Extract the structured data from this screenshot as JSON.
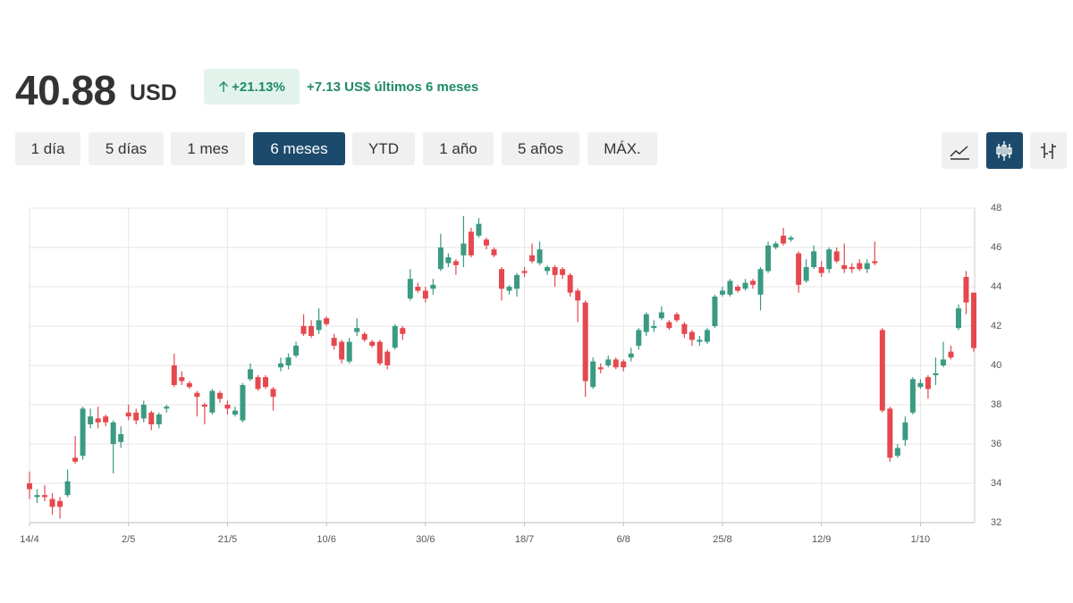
{
  "header": {
    "price": "40.88",
    "currency": "USD",
    "change_pct": "+21.13%",
    "change_text": "+7.13 US$ últimos 6 meses",
    "ranges": [
      "1 día",
      "5 días",
      "1 mes",
      "6 meses",
      "YTD",
      "1 año",
      "5 años",
      "MÁX."
    ]
  },
  "chart_data": {
    "type": "candlestick",
    "up_color": "#3a9a82",
    "down_color": "#e5484d",
    "grid": true,
    "ylim": [
      32,
      48
    ],
    "yticks": [
      32,
      34,
      36,
      38,
      40,
      42,
      44,
      46,
      48
    ],
    "categories": [
      "14/4",
      null,
      null,
      null,
      null,
      null,
      null,
      null,
      null,
      null,
      null,
      null,
      null,
      "2/5",
      null,
      null,
      null,
      null,
      null,
      null,
      null,
      null,
      null,
      null,
      null,
      null,
      "21/5",
      null,
      null,
      null,
      null,
      null,
      null,
      null,
      null,
      null,
      null,
      null,
      null,
      "10/6",
      null,
      null,
      null,
      null,
      null,
      null,
      null,
      null,
      null,
      null,
      null,
      null,
      "30/6",
      null,
      null,
      null,
      null,
      null,
      null,
      null,
      null,
      null,
      null,
      null,
      null,
      "18/7",
      null,
      null,
      null,
      null,
      null,
      null,
      null,
      null,
      null,
      null,
      null,
      null,
      "6/8",
      null,
      null,
      null,
      null,
      null,
      null,
      null,
      null,
      null,
      null,
      null,
      null,
      "25/8",
      null,
      null,
      null,
      null,
      null,
      null,
      null,
      null,
      null,
      null,
      null,
      null,
      "12/9",
      null,
      null,
      null,
      null,
      null,
      null,
      null,
      null,
      null,
      null,
      null,
      null,
      "1/10",
      null,
      null,
      null,
      null,
      null,
      null,
      null
    ],
    "open": [
      34.0,
      33.3,
      33.4,
      33.2,
      33.1,
      33.4,
      35.3,
      35.4,
      37.0,
      37.3,
      37.4,
      36.0,
      36.1,
      37.6,
      37.6,
      37.3,
      37.6,
      37.0,
      37.8,
      40.0,
      39.4,
      39.1,
      38.6,
      38.0,
      37.6,
      38.6,
      38.0,
      37.5,
      37.2,
      39.3,
      39.4,
      39.4,
      38.8,
      39.9,
      40.0,
      40.5,
      42.0,
      42.0,
      41.8,
      42.4,
      41.4,
      41.2,
      40.2,
      41.7,
      41.6,
      41.2,
      41.2,
      40.7,
      40.9,
      41.9,
      43.4,
      44.0,
      43.8,
      43.9,
      44.9,
      45.2,
      45.3,
      45.6,
      46.8,
      46.6,
      46.4,
      45.9,
      44.9,
      43.8,
      43.9,
      44.8,
      45.6,
      45.2,
      44.8,
      45.0,
      44.9,
      44.6,
      43.8,
      43.2,
      38.9,
      39.9,
      40.0,
      40.3,
      40.2,
      40.4,
      41.0,
      41.7,
      41.9,
      42.4,
      42.2,
      42.6,
      42.1,
      41.7,
      41.2,
      41.2,
      42.0,
      43.6,
      43.6,
      44.0,
      43.9,
      44.3,
      43.6,
      44.8,
      46.0,
      46.6,
      46.4,
      45.7,
      44.3,
      45.0,
      45.0,
      44.9,
      45.8,
      45.1,
      45.0,
      45.2,
      44.9,
      45.3,
      41.8,
      37.8,
      35.4,
      36.2,
      37.6,
      38.9,
      39.4,
      39.5,
      40.0,
      40.7,
      41.9,
      44.5,
      43.7
    ],
    "high": [
      34.6,
      33.7,
      33.9,
      33.5,
      33.3,
      34.7,
      36.4,
      37.9,
      37.8,
      37.9,
      37.5,
      37.2,
      36.9,
      38.0,
      37.8,
      38.2,
      37.7,
      37.6,
      38.0,
      40.6,
      39.7,
      39.2,
      38.7,
      38.1,
      38.8,
      38.7,
      38.2,
      37.9,
      39.1,
      40.1,
      39.5,
      39.5,
      38.9,
      40.4,
      40.6,
      41.2,
      42.6,
      42.3,
      42.9,
      42.5,
      41.6,
      41.3,
      41.4,
      42.4,
      41.7,
      41.3,
      41.3,
      40.8,
      42.1,
      42.0,
      44.9,
      44.2,
      44.0,
      44.4,
      46.7,
      45.7,
      45.4,
      47.6,
      47.0,
      47.5,
      46.5,
      46.0,
      45.0,
      44.1,
      44.7,
      45.0,
      46.2,
      46.3,
      45.1,
      45.1,
      45.0,
      44.7,
      43.9,
      43.3,
      40.4,
      40.1,
      40.5,
      40.4,
      40.3,
      40.9,
      41.9,
      42.7,
      42.3,
      43.0,
      42.3,
      42.7,
      42.2,
      41.8,
      41.5,
      41.9,
      43.6,
      44.0,
      44.4,
      44.1,
      44.4,
      44.4,
      45.0,
      46.3,
      46.3,
      47.0,
      46.6,
      45.8,
      45.4,
      46.1,
      45.3,
      46.0,
      46.0,
      46.2,
      45.2,
      45.4,
      45.4,
      46.3,
      41.9,
      37.9,
      36.0,
      37.4,
      39.4,
      39.3,
      39.5,
      40.4,
      41.2,
      41.0,
      43.1,
      44.8,
      43.7
    ],
    "low": [
      33.2,
      33.0,
      33.1,
      32.4,
      32.2,
      33.3,
      35.0,
      35.2,
      36.8,
      36.8,
      36.9,
      34.5,
      35.8,
      37.2,
      37.0,
      37.1,
      36.7,
      36.8,
      37.6,
      38.9,
      39.0,
      38.8,
      37.4,
      37.0,
      37.5,
      38.1,
      37.5,
      37.4,
      37.1,
      39.2,
      38.7,
      38.8,
      37.7,
      39.7,
      39.8,
      40.4,
      41.5,
      41.4,
      41.6,
      42.0,
      40.8,
      40.1,
      40.1,
      41.5,
      41.2,
      40.9,
      40.0,
      39.8,
      40.8,
      41.3,
      43.3,
      43.7,
      43.2,
      43.6,
      44.8,
      45.0,
      44.6,
      45.0,
      45.5,
      46.5,
      45.9,
      45.5,
      43.3,
      43.6,
      43.5,
      44.5,
      45.2,
      45.1,
      44.6,
      44.0,
      44.4,
      43.5,
      42.2,
      38.4,
      38.8,
      39.6,
      39.9,
      39.8,
      39.7,
      40.2,
      40.8,
      41.5,
      41.7,
      42.3,
      41.8,
      42.2,
      41.4,
      41.0,
      41.0,
      41.1,
      41.9,
      43.5,
      43.5,
      43.7,
      43.8,
      43.9,
      42.8,
      44.7,
      45.9,
      46.1,
      46.3,
      43.7,
      44.2,
      44.9,
      44.5,
      44.7,
      45.2,
      44.7,
      44.7,
      44.8,
      44.7,
      45.1,
      37.6,
      35.1,
      35.3,
      35.9,
      37.5,
      38.8,
      38.3,
      39.0,
      39.9,
      40.3,
      41.8,
      42.6,
      40.7
    ],
    "close": [
      33.7,
      33.4,
      33.3,
      32.8,
      32.8,
      34.1,
      35.1,
      37.8,
      37.4,
      37.1,
      37.1,
      37.1,
      36.5,
      37.4,
      37.2,
      38.0,
      37.0,
      37.5,
      37.9,
      39.0,
      39.2,
      38.9,
      38.4,
      37.9,
      38.7,
      38.3,
      37.8,
      37.7,
      39.0,
      39.8,
      38.8,
      38.9,
      38.4,
      40.1,
      40.4,
      41.0,
      41.6,
      41.5,
      42.3,
      42.1,
      41.0,
      40.3,
      41.2,
      41.9,
      41.3,
      41.0,
      40.1,
      40.0,
      42.0,
      41.6,
      44.4,
      43.8,
      43.4,
      44.1,
      46.0,
      45.5,
      45.1,
      46.2,
      45.6,
      47.2,
      46.1,
      45.6,
      43.9,
      44.0,
      44.6,
      44.7,
      45.3,
      45.9,
      45.0,
      44.6,
      44.6,
      43.7,
      43.3,
      39.2,
      40.2,
      39.8,
      40.3,
      39.9,
      39.9,
      40.6,
      41.8,
      42.6,
      42.0,
      42.7,
      41.9,
      42.3,
      41.6,
      41.3,
      41.3,
      41.8,
      43.5,
      43.8,
      44.3,
      43.8,
      44.2,
      44.1,
      44.9,
      46.1,
      46.2,
      46.2,
      46.5,
      44.1,
      45.0,
      45.8,
      44.7,
      45.9,
      45.3,
      44.9,
      44.9,
      44.9,
      45.2,
      45.2,
      37.7,
      35.3,
      35.8,
      37.1,
      39.3,
      39.1,
      38.8,
      39.6,
      40.3,
      40.4,
      42.9,
      43.2,
      40.88
    ]
  }
}
